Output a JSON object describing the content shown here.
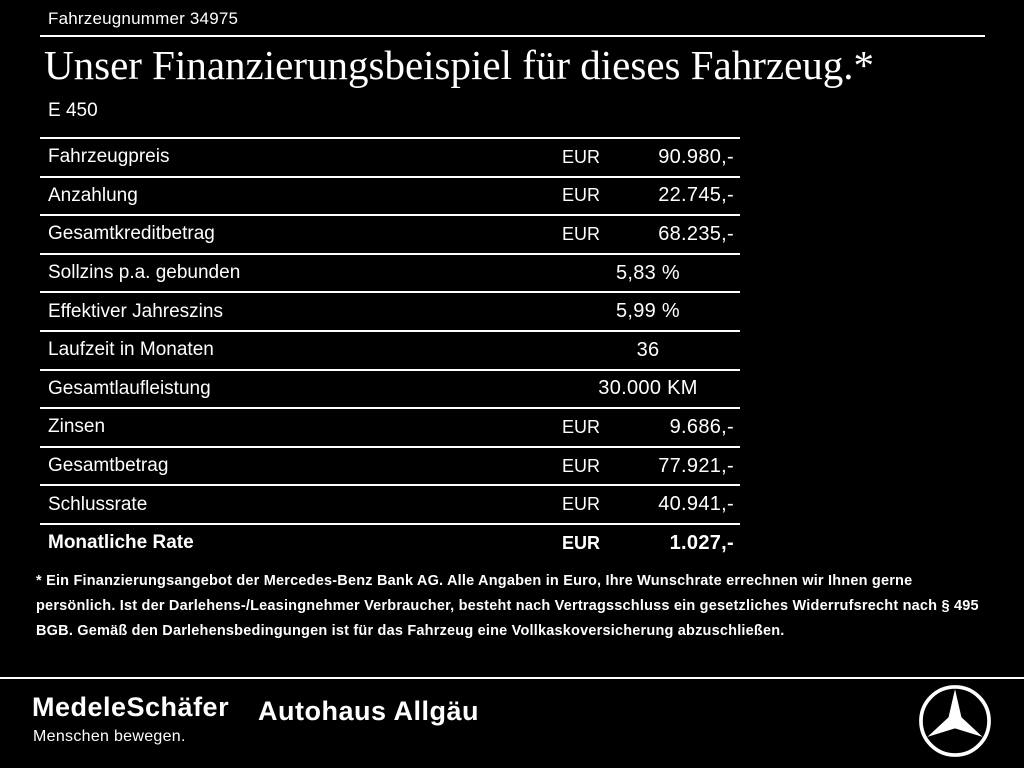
{
  "header": {
    "vehicle_number": "Fahrzeugnummer 34975",
    "title": "Unser Finanzierungsbeispiel für dieses Fahrzeug.*",
    "model": "E 450"
  },
  "table": {
    "rows": [
      {
        "label": "Fahrzeugpreis",
        "currency": "EUR",
        "value": "90.980,-",
        "bold": false
      },
      {
        "label": "Anzahlung",
        "currency": "EUR",
        "value": "22.745,-",
        "bold": false
      },
      {
        "label": "Gesamtkreditbetrag",
        "currency": "EUR",
        "value": "68.235,-",
        "bold": false
      },
      {
        "label": "Sollzins p.a. gebunden",
        "currency": "",
        "value": "5,83 %",
        "bold": false
      },
      {
        "label": "Effektiver Jahreszins",
        "currency": "",
        "value": "5,99 %",
        "bold": false
      },
      {
        "label": "Laufzeit in Monaten",
        "currency": "",
        "value": "36",
        "bold": false
      },
      {
        "label": "Gesamtlaufleistung",
        "currency": "",
        "value": "30.000 KM",
        "bold": false
      },
      {
        "label": "Zinsen",
        "currency": "EUR",
        "value": "9.686,-",
        "bold": false
      },
      {
        "label": "Gesamtbetrag",
        "currency": "EUR",
        "value": "77.921,-",
        "bold": false
      },
      {
        "label": "Schlussrate",
        "currency": "EUR",
        "value": "40.941,-",
        "bold": false
      },
      {
        "label": "Monatliche Rate",
        "currency": "EUR",
        "value": "1.027,-",
        "bold": true
      }
    ]
  },
  "footnote": "* Ein Finanzierungsangebot der Mercedes-Benz Bank AG. Alle Angaben in Euro, Ihre Wunschrate errechnen wir Ihnen gerne persönlich. Ist der Darlehens-/Leasingnehmer Verbraucher, besteht nach Vertragsschluss ein gesetzliches Widerrufsrecht nach § 495 BGB. Gemäß den Darlehensbedingungen ist für das Fahrzeug eine Vollkaskoversicherung abzuschließen.",
  "footer": {
    "dealer1_name": "MedeleSchäfer",
    "dealer1_tagline": "Menschen bewegen.",
    "dealer2_name": "Autohaus Allgäu",
    "brand_icon": "mercedes-star-icon"
  },
  "colors": {
    "background": "#000000",
    "text": "#ffffff",
    "divider": "#ffffff"
  }
}
